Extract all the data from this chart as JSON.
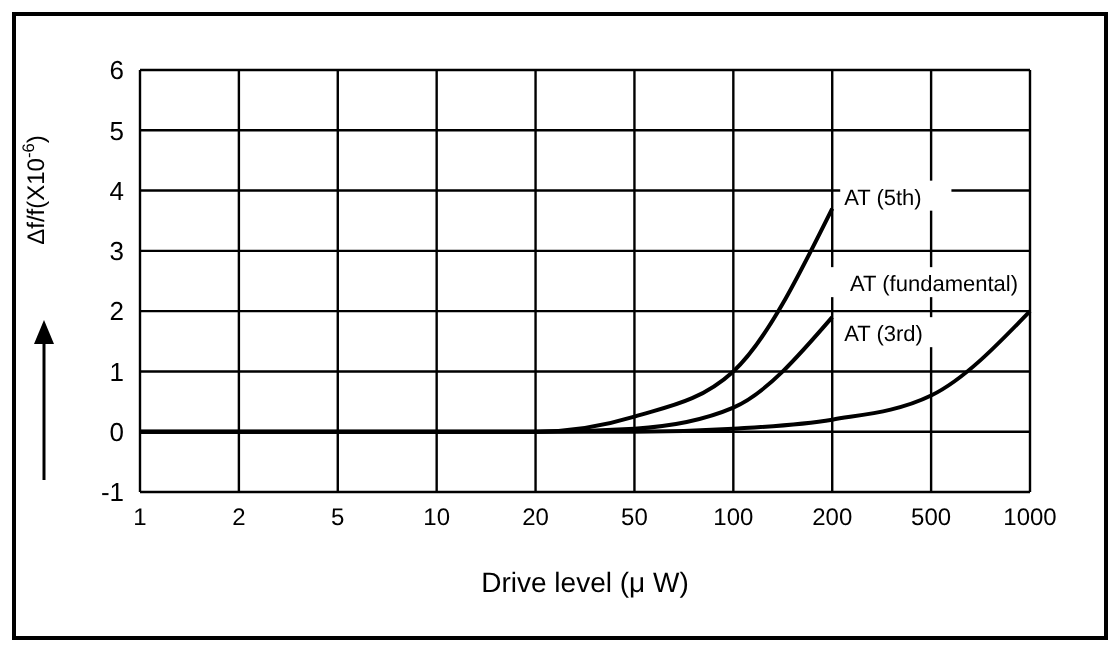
{
  "chart_data": {
    "type": "line",
    "xlabel": "Drive level (μ W)",
    "ylabel": "Δf/f(X10$^{-6}$)",
    "categories": [
      "1",
      "2",
      "5",
      "10",
      "20",
      "50",
      "100",
      "200",
      "500",
      "1000"
    ],
    "series": [
      {
        "name": "AT (5th)",
        "color": "#000000",
        "values": [
          0,
          0,
          0,
          0,
          0,
          0.25,
          1.0,
          3.7,
          null,
          null
        ]
      },
      {
        "name": "AT (3rd)",
        "color": "#000000",
        "values": [
          0,
          0,
          0,
          0,
          0,
          0.05,
          0.4,
          1.9,
          null,
          null
        ]
      },
      {
        "name": "AT (fundamental)",
        "color": "#000000",
        "values": [
          0,
          0,
          0,
          0,
          0,
          0,
          0.05,
          0.2,
          0.6,
          2.0
        ]
      }
    ],
    "ylim": [
      -1,
      6
    ],
    "yticks": [
      -1,
      0,
      1,
      2,
      3,
      4,
      5,
      6
    ],
    "grid": true,
    "legend": false,
    "marker": "none",
    "line_style": "solid"
  }
}
